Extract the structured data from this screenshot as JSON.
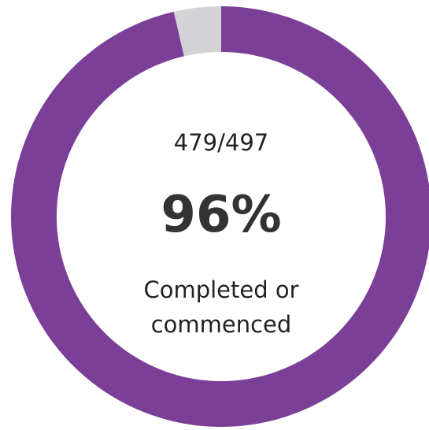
{
  "chart_data": {
    "type": "donut",
    "categories": [
      "Completed or commenced",
      null
    ],
    "values": [
      479,
      18
    ],
    "colors": [
      "#7b3f98",
      "#d3d3d6"
    ],
    "center_texts": [
      "479/497",
      "96%",
      "Completed or commenced"
    ]
  }
}
